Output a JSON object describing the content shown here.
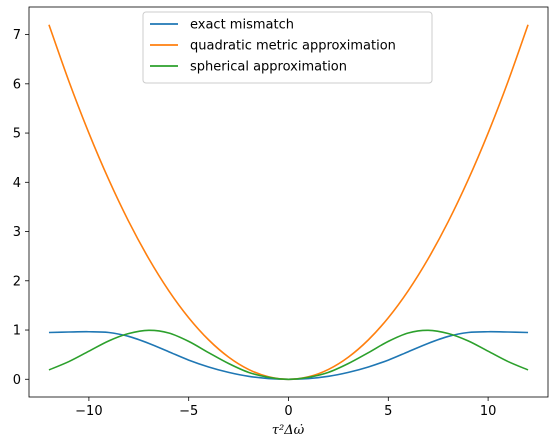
{
  "chart_data": {
    "type": "line",
    "title": "",
    "xlabel": "τ²Δω̇",
    "ylabel": "",
    "xlim": [
      -13,
      13
    ],
    "ylim": [
      -0.36,
      7.56
    ],
    "xticks": [
      -10,
      -5,
      0,
      5,
      10
    ],
    "xtick_labels": [
      "−10",
      "−5",
      "0",
      "5",
      "10"
    ],
    "yticks": [
      0,
      1,
      2,
      3,
      4,
      5,
      6,
      7
    ],
    "ytick_labels": [
      "0",
      "1",
      "2",
      "3",
      "4",
      "5",
      "6",
      "7"
    ],
    "grid": false,
    "legend_position": "top-center",
    "x": [
      -12,
      -11,
      -10,
      -9,
      -8,
      -7,
      -6,
      -5,
      -4,
      -3,
      -2,
      -1,
      0,
      1,
      2,
      3,
      4,
      5,
      6,
      7,
      8,
      9,
      10,
      11,
      12
    ],
    "series": [
      {
        "name": "exact mismatch",
        "color": "#1f77b4",
        "values": [
          0.95,
          0.96,
          0.965,
          0.95,
          0.87,
          0.73,
          0.56,
          0.39,
          0.25,
          0.14,
          0.06,
          0.015,
          0,
          0.015,
          0.06,
          0.14,
          0.25,
          0.39,
          0.56,
          0.73,
          0.87,
          0.95,
          0.965,
          0.96,
          0.95
        ]
      },
      {
        "name": "quadratic metric approximation",
        "color": "#ff7f0e",
        "values": [
          7.2,
          6.05,
          5.0,
          4.05,
          3.2,
          2.45,
          1.8,
          1.25,
          0.8,
          0.45,
          0.2,
          0.05,
          0,
          0.05,
          0.2,
          0.45,
          0.8,
          1.25,
          1.8,
          2.45,
          3.2,
          4.05,
          5.0,
          6.05,
          7.2
        ]
      },
      {
        "name": "spherical approximation",
        "color": "#2ca02c",
        "values": [
          0.19,
          0.36,
          0.57,
          0.78,
          0.93,
          0.995,
          0.94,
          0.77,
          0.54,
          0.32,
          0.14,
          0.04,
          0,
          0.04,
          0.14,
          0.32,
          0.54,
          0.77,
          0.94,
          0.995,
          0.93,
          0.78,
          0.57,
          0.36,
          0.19
        ]
      }
    ]
  }
}
